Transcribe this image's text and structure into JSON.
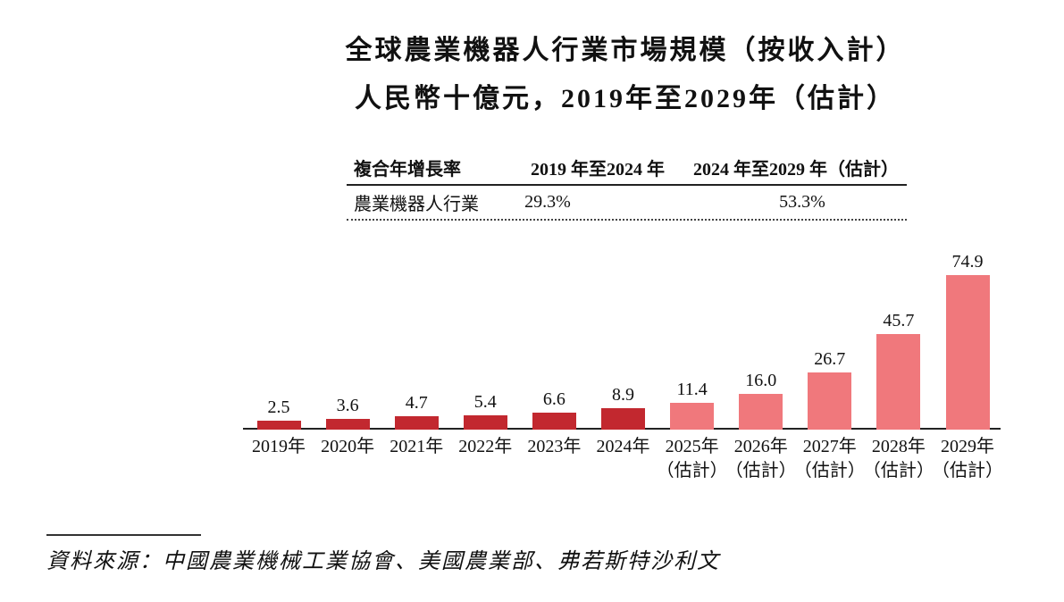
{
  "title": {
    "line1": "全球農業機器人行業市場規模（按收入計）",
    "line2": "人民幣十億元，2019年至2029年（估計）"
  },
  "cagr_table": {
    "header": [
      "複合年增長率",
      "2019 年至2024 年",
      "2024 年至2029 年（估計）"
    ],
    "row": [
      "農業機器人行業",
      "29.3%",
      "53.3%"
    ]
  },
  "chart_data": {
    "type": "bar",
    "title": "全球農業機器人行業市場規模（按收入計）",
    "subtitle": "人民幣十億元，2019年至2029年（估計）",
    "unit": "人民幣十億元",
    "categories": [
      "2019年",
      "2020年",
      "2021年",
      "2022年",
      "2023年",
      "2024年",
      "2025年（估計）",
      "2026年（估計）",
      "2027年（估計）",
      "2028年（估計）",
      "2029年（估計）"
    ],
    "values": [
      2.5,
      3.6,
      4.7,
      5.4,
      6.6,
      8.9,
      11.4,
      16.0,
      26.7,
      45.7,
      74.9
    ],
    "data_labels": true,
    "ylim": [
      0,
      80
    ],
    "grid": false,
    "legend": false,
    "estimated_start_index": 6,
    "colors": {
      "historical": "#c2282f",
      "estimated": "#f0787c"
    },
    "cagr": {
      "label": "複合年增長率",
      "row_label": "農業機器人行業",
      "periods": [
        "2019 年至2024 年",
        "2024 年至2029 年（估計）"
      ],
      "values": [
        "29.3%",
        "53.3%"
      ]
    }
  },
  "source": "資料來源：中國農業機械工業協會、美國農業部、弗若斯特沙利文"
}
